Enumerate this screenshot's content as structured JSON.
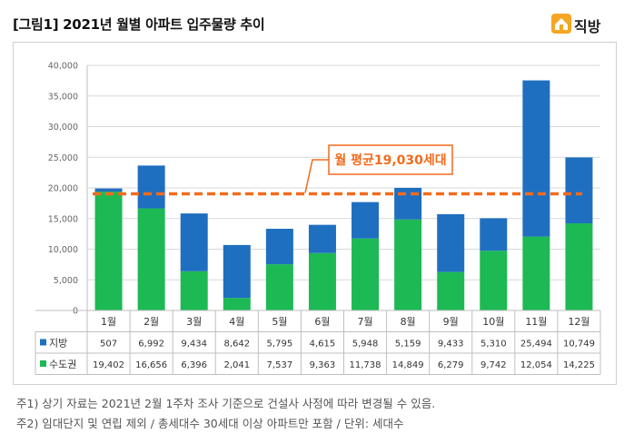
{
  "header": {
    "title": "[그림1] 2021년 월별 아파트 입주물량 추이",
    "logo_text": "직방"
  },
  "colors": {
    "regional": "#1f6fc0",
    "capital": "#1db954",
    "average_line": "#f26b1d"
  },
  "chart_data": {
    "type": "bar",
    "stacked": true,
    "categories": [
      "1월",
      "2월",
      "3월",
      "4월",
      "5월",
      "6월",
      "7월",
      "8월",
      "9월",
      "10월",
      "11월",
      "12월"
    ],
    "series": [
      {
        "name": "수도권",
        "values": [
          19402,
          16656,
          6396,
          2041,
          7537,
          9363,
          11738,
          14849,
          6279,
          9742,
          12054,
          14225
        ]
      },
      {
        "name": "지방",
        "values": [
          507,
          6992,
          9434,
          8642,
          5795,
          4615,
          5948,
          5159,
          9433,
          5310,
          25494,
          10749
        ]
      }
    ],
    "table_rows": [
      {
        "name": "지방",
        "cells": [
          "507",
          "6,992",
          "9,434",
          "8,642",
          "5,795",
          "4,615",
          "5,948",
          "5,159",
          "9,433",
          "5,310",
          "25,494",
          "10,749"
        ]
      },
      {
        "name": "수도권",
        "cells": [
          "19,402",
          "16,656",
          "6,396",
          "2,041",
          "7,537",
          "9,363",
          "11,738",
          "14,849",
          "6,279",
          "9,742",
          "12,054",
          "14,225"
        ]
      }
    ],
    "yticks": [
      "0",
      "5,000",
      "10,000",
      "15,000",
      "20,000",
      "25,000",
      "30,000",
      "35,000",
      "40,000"
    ],
    "ylim": [
      0,
      40000
    ],
    "average": {
      "value": 19030,
      "label": "월 평균19,030세대"
    },
    "grid": true,
    "legend": "table"
  },
  "notes": [
    "주1) 상기 자료는 2021년 2월 1주차 조사 기준으로 건설사 사정에 따라 변경될 수 있음.",
    "주2) 임대단지 및 연립 제외 / 총세대수 30세대 이상 아파트만 포함 / 단위: 세대수"
  ]
}
